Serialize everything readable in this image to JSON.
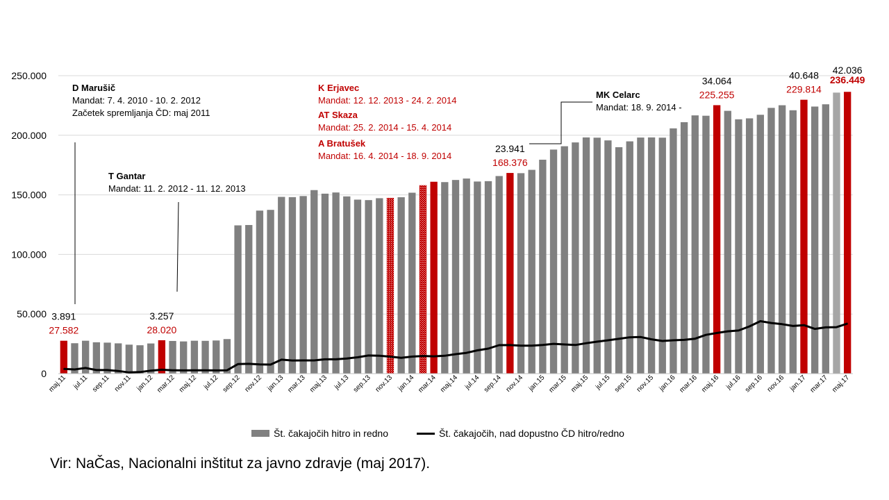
{
  "chart_data": {
    "type": "bar",
    "ylim": [
      0,
      250000
    ],
    "yticks": [
      "0",
      "50.000",
      "100.000",
      "150.000",
      "200.000",
      "250.000"
    ],
    "grid": true,
    "categories": [
      "maj.11",
      "jun.11",
      "jul.11",
      "avg.11",
      "sep.11",
      "okt.11",
      "nov.11",
      "dec.11",
      "jan.12",
      "feb.12",
      "mar.12",
      "apr.12",
      "maj.12",
      "jun.12",
      "jul.12",
      "avg.12",
      "sep.12",
      "okt.12",
      "nov.12",
      "dec.12",
      "jan.13",
      "feb.13",
      "mar.13",
      "apr.13",
      "maj.13",
      "jun.13",
      "jul.13",
      "avg.13",
      "sep.13",
      "okt.13",
      "nov.13",
      "dec.13",
      "jan.14",
      "feb.14",
      "mar.14",
      "apr.14",
      "maj.14",
      "jun.14",
      "jul.14",
      "avg.14",
      "sep.14",
      "okt.14",
      "nov.14",
      "dec.14",
      "jan.15",
      "feb.15",
      "mar.15",
      "apr.15",
      "maj.15",
      "jun.15",
      "jul.15",
      "avg.15",
      "sep.15",
      "okt.15",
      "nov.15",
      "dec.15",
      "jan.16",
      "feb.16",
      "mar.16",
      "apr.16",
      "maj.16",
      "jun.16",
      "jul.16",
      "avg.16",
      "sep.16",
      "okt.16",
      "nov.16",
      "dec.16",
      "jan.17",
      "feb.17",
      "mar.17",
      "apr.17",
      "maj.17"
    ],
    "shown_tick_labels": [
      "maj.11",
      "jul.11",
      "sep.11",
      "nov.11",
      "jan.12",
      "mar.12",
      "maj.12",
      "jul.12",
      "sep.12",
      "nov.12",
      "jan.13",
      "mar.13",
      "maj.13",
      "jul.13",
      "sep.13",
      "nov.13",
      "jan.14",
      "mar.14",
      "maj.14",
      "jul.14",
      "sep.14",
      "nov.14",
      "jan.15",
      "mar.15",
      "maj.15",
      "jul.15",
      "sep.15",
      "nov.15",
      "jan.16",
      "mar.16",
      "maj.16",
      "jul.16",
      "sep.16",
      "nov.16",
      "jan.17",
      "mar.17",
      "maj.17"
    ],
    "series": [
      {
        "name": "Št. čakajočih hitro in redno",
        "type": "bar",
        "color": "#808080",
        "values": [
          27582,
          25500,
          27600,
          26300,
          26000,
          25400,
          24300,
          23800,
          25300,
          28020,
          27400,
          27000,
          27600,
          27500,
          27800,
          29000,
          124400,
          124700,
          136800,
          137400,
          148300,
          148100,
          149000,
          154000,
          151000,
          152000,
          148700,
          146000,
          145600,
          147200,
          147500,
          148000,
          151800,
          158100,
          161000,
          160700,
          162500,
          163700,
          161200,
          161500,
          165800,
          168376,
          168200,
          171000,
          179500,
          188000,
          190800,
          194000,
          198200,
          198000,
          195700,
          190000,
          194900,
          198100,
          198200,
          198000,
          205800,
          211000,
          216700,
          216400,
          225255,
          220500,
          213400,
          214200,
          217200,
          223000,
          225200,
          221000,
          229814,
          224100,
          226000,
          235800,
          236449
        ],
        "highlight_color": "#c00000",
        "highlight_indices": [
          0,
          9,
          30,
          33,
          34,
          41,
          60,
          68,
          72
        ],
        "hatched_indices": [
          30,
          33
        ]
      },
      {
        "name": "Št. čakajočih, nad dopustno ČD hitro/redno",
        "type": "line",
        "color": "#000000",
        "values": [
          3891,
          3500,
          4700,
          3000,
          3000,
          2200,
          1000,
          1300,
          2500,
          3257,
          2800,
          2700,
          2800,
          2800,
          2700,
          2800,
          8000,
          8200,
          7700,
          7600,
          11700,
          11000,
          11100,
          11100,
          12000,
          12000,
          12700,
          13700,
          15200,
          15000,
          14200,
          13300,
          14300,
          14800,
          14500,
          15000,
          16300,
          17400,
          19500,
          21000,
          23900,
          23941,
          23500,
          23400,
          24000,
          25000,
          24500,
          24000,
          25500,
          26800,
          28000,
          29200,
          30500,
          30700,
          28800,
          27400,
          28000,
          28300,
          29300,
          32500,
          34064,
          35500,
          36200,
          39600,
          44000,
          42500,
          41500,
          40000,
          40648,
          37500,
          38800,
          39000,
          42036
        ]
      }
    ],
    "data_labels": [
      {
        "index": 0,
        "bar": "27.582",
        "line": "3.891"
      },
      {
        "index": 9,
        "bar": "28.020",
        "line": "3.257"
      },
      {
        "index": 41,
        "bar": "168.376",
        "line": "23.941"
      },
      {
        "index": 60,
        "bar": "225.255",
        "line": "34.064"
      },
      {
        "index": 68,
        "bar": "229.814",
        "line": "40.648"
      },
      {
        "index": 72,
        "bar": "236.449",
        "line": "42.036"
      }
    ],
    "legend_position": "bottom"
  },
  "annotations": [
    {
      "id": "marusic",
      "title": "D Marušič",
      "lines": [
        "Mandat: 7. 4. 2010 - 10. 2. 2012",
        "Začetek spremljanja ČD: maj 2011"
      ],
      "color": "#000000"
    },
    {
      "id": "gantar",
      "title": "T Gantar",
      "lines": [
        "Mandat: 11. 2. 2012 - 11. 12.  2013"
      ],
      "color": "#000000"
    },
    {
      "id": "erjavec",
      "title": "K Erjavec",
      "lines": [
        "Mandat: 12. 12. 2013 - 24. 2. 2014"
      ],
      "color": "#c00000"
    },
    {
      "id": "skaza",
      "title": "AT Skaza",
      "lines": [
        "Mandat: 25. 2. 2014 - 15. 4. 2014"
      ],
      "color": "#c00000"
    },
    {
      "id": "bratusek",
      "title": "A Bratušek",
      "lines": [
        "Mandat: 16. 4. 2014 - 18. 9. 2014"
      ],
      "color": "#c00000"
    },
    {
      "id": "celarc",
      "title": "MK Celarc",
      "lines": [
        "Mandat: 18. 9. 2014 -"
      ],
      "color": "#000000"
    }
  ],
  "legend": {
    "bar_label": "Št. čakajočih hitro in redno",
    "line_label": "Št. čakajočih, nad dopustno ČD hitro/redno"
  },
  "source": "Vir: NaČas, Nacionalni inštitut za javno zdravje (maj 2017)."
}
